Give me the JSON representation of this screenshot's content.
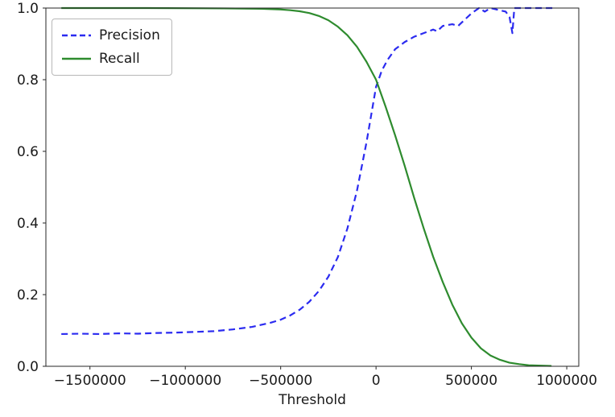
{
  "figure": {
    "background": "#ffffff"
  },
  "chart_data": {
    "type": "line",
    "title": "",
    "xlabel": "Threshold",
    "ylabel": "",
    "grid": false,
    "legend": {
      "position": "upper-left",
      "entries": [
        "Precision",
        "Recall"
      ]
    },
    "xlim": [
      -1731000,
      1063000
    ],
    "ylim": [
      0,
      1
    ],
    "xticks": {
      "values": [
        -1500000,
        -1000000,
        -500000,
        0,
        500000,
        1000000
      ],
      "labels": [
        "−1500000",
        "−1000000",
        "−500000",
        "0",
        "500000",
        "1000000"
      ]
    },
    "yticks": {
      "values": [
        0.0,
        0.2,
        0.4,
        0.6,
        0.8,
        1.0
      ],
      "labels": [
        "0.0",
        "0.2",
        "0.4",
        "0.6",
        "0.8",
        "1.0"
      ]
    },
    "axis_color": "#262626",
    "series": [
      {
        "name": "Precision",
        "color": "#2b2bf0",
        "line_style": "dashed",
        "x": [
          -1650000,
          -1550000,
          -1450000,
          -1350000,
          -1250000,
          -1150000,
          -1050000,
          -950000,
          -850000,
          -750000,
          -650000,
          -550000,
          -500000,
          -450000,
          -400000,
          -350000,
          -300000,
          -250000,
          -200000,
          -150000,
          -100000,
          -50000,
          0,
          30000,
          60000,
          100000,
          150000,
          200000,
          250000,
          300000,
          320000,
          350000,
          400000,
          430000,
          460000,
          500000,
          540000,
          570000,
          600000,
          640000,
          680000,
          700000,
          715000,
          725000,
          780000,
          850000,
          940000
        ],
        "y": [
          0.09,
          0.091,
          0.09,
          0.092,
          0.091,
          0.093,
          0.094,
          0.096,
          0.098,
          0.103,
          0.11,
          0.122,
          0.13,
          0.142,
          0.158,
          0.18,
          0.21,
          0.25,
          0.305,
          0.385,
          0.49,
          0.625,
          0.78,
          0.825,
          0.855,
          0.885,
          0.905,
          0.92,
          0.93,
          0.94,
          0.935,
          0.95,
          0.955,
          0.95,
          0.965,
          0.985,
          1.0,
          0.99,
          1.0,
          0.995,
          0.99,
          0.975,
          0.93,
          1.0,
          1.0,
          1.0,
          1.0
        ]
      },
      {
        "name": "Recall",
        "color": "#2e8b2e",
        "line_style": "solid",
        "x": [
          -1650000,
          -1200000,
          -800000,
          -600000,
          -500000,
          -450000,
          -400000,
          -350000,
          -300000,
          -250000,
          -200000,
          -150000,
          -100000,
          -50000,
          0,
          50000,
          100000,
          150000,
          200000,
          250000,
          300000,
          350000,
          400000,
          450000,
          500000,
          550000,
          600000,
          650000,
          700000,
          750000,
          800000,
          850000,
          920000
        ],
        "y": [
          1.0,
          1.0,
          0.999,
          0.998,
          0.996,
          0.994,
          0.991,
          0.986,
          0.978,
          0.966,
          0.948,
          0.924,
          0.892,
          0.85,
          0.8,
          0.725,
          0.645,
          0.56,
          0.47,
          0.385,
          0.305,
          0.235,
          0.172,
          0.12,
          0.08,
          0.05,
          0.03,
          0.018,
          0.01,
          0.006,
          0.003,
          0.002,
          0.001
        ]
      }
    ]
  }
}
